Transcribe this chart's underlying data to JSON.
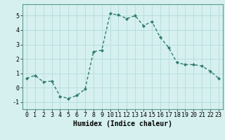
{
  "x": [
    0,
    1,
    2,
    3,
    4,
    5,
    6,
    7,
    8,
    9,
    10,
    11,
    12,
    13,
    14,
    15,
    16,
    17,
    18,
    19,
    20,
    21,
    22,
    23
  ],
  "y": [
    0.65,
    0.85,
    0.4,
    0.45,
    -0.6,
    -0.75,
    -0.55,
    -0.1,
    2.5,
    2.6,
    5.15,
    5.05,
    4.8,
    5.0,
    4.3,
    4.6,
    3.5,
    2.8,
    1.75,
    1.6,
    1.6,
    1.5,
    1.15,
    0.65
  ],
  "line_color": "#2d7d6e",
  "marker": "D",
  "marker_size": 2.0,
  "linewidth": 1.0,
  "xlabel": "Humidex (Indice chaleur)",
  "ylim": [
    -1.5,
    5.8
  ],
  "xlim": [
    -0.5,
    23.5
  ],
  "bg_color": "#d6f0f0",
  "grid_color": "#b8dede",
  "tick_label_fontsize": 6,
  "xlabel_fontsize": 7,
  "xticks": [
    0,
    1,
    2,
    3,
    4,
    5,
    6,
    7,
    8,
    9,
    10,
    11,
    12,
    13,
    14,
    15,
    16,
    17,
    18,
    19,
    20,
    21,
    22,
    23
  ],
  "yticks": [
    -1,
    0,
    1,
    2,
    3,
    4,
    5
  ]
}
